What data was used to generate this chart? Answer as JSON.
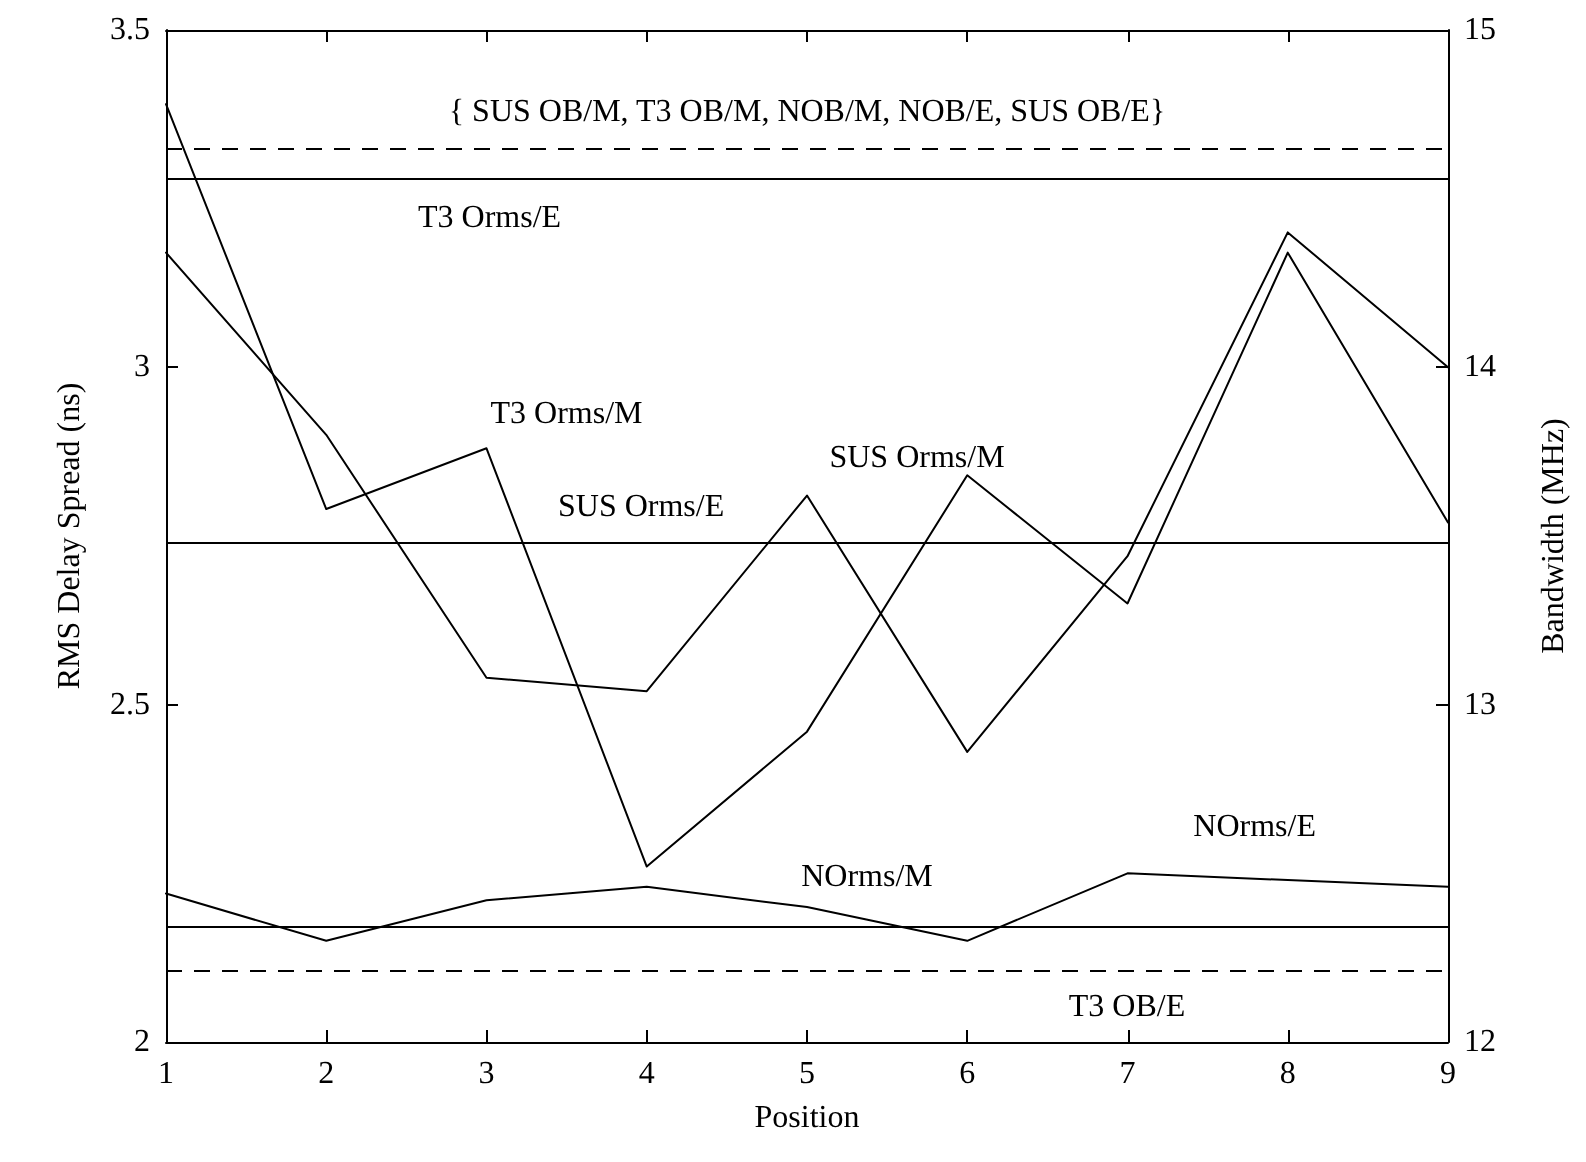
{
  "chart_data": {
    "type": "line",
    "xlabel": "Position",
    "ylabel": "RMS Delay Spread (ns)",
    "y2label": "Bandwidth (MHz)",
    "x": [
      1,
      2,
      3,
      4,
      5,
      6,
      7,
      8,
      9
    ],
    "series": [
      {
        "name": "T3 Orms/M",
        "color": "#000000",
        "values": [
          3.39,
          2.79,
          2.88,
          2.26,
          2.46,
          2.84,
          2.65,
          3.17,
          2.77
        ]
      },
      {
        "name": "SUS Orms/M",
        "color": "#000000",
        "values": [
          3.17,
          2.9,
          2.54,
          2.52,
          2.81,
          2.43,
          2.72,
          3.2,
          3.0
        ]
      },
      {
        "name": "NOrms/M",
        "color": "#000000",
        "values": [
          2.22,
          2.15,
          2.21,
          2.23,
          2.2,
          2.15,
          2.25,
          2.24,
          2.23
        ]
      }
    ],
    "xlim": [
      1,
      9
    ],
    "xticks": [
      1,
      2,
      3,
      4,
      5,
      6,
      7,
      8,
      9
    ],
    "ylim": [
      2,
      3.5
    ],
    "yticks": [
      2,
      2.5,
      3,
      3.5
    ],
    "y2lim": [
      12,
      15
    ],
    "y2ticks": [
      12,
      13,
      14,
      15
    ],
    "ref_lines": [
      {
        "axis": "y2",
        "value": 14.65,
        "label": "{ SUS OB/M, T3 OB/M, NOB/M, NOB/E, SUS OB/E}",
        "color": "#000000",
        "line_style": "dashed"
      },
      {
        "axis": "y",
        "value": 3.276,
        "label": "T3 Orms/E",
        "color": "#000000",
        "line_style": "solid"
      },
      {
        "axis": "y",
        "value": 2.736,
        "label": "SUS Orms/E",
        "color": "#000000",
        "line_style": "solid"
      },
      {
        "axis": "y",
        "value": 2.169,
        "label": "NOrms/E",
        "color": "#000000",
        "line_style": "solid"
      },
      {
        "axis": "y2",
        "value": 12.21,
        "label": "T3 OB/E",
        "color": "#000000",
        "line_style": "dashed"
      }
    ],
    "grid": false,
    "legend": false,
    "marker": "none",
    "line_style": "solid"
  }
}
